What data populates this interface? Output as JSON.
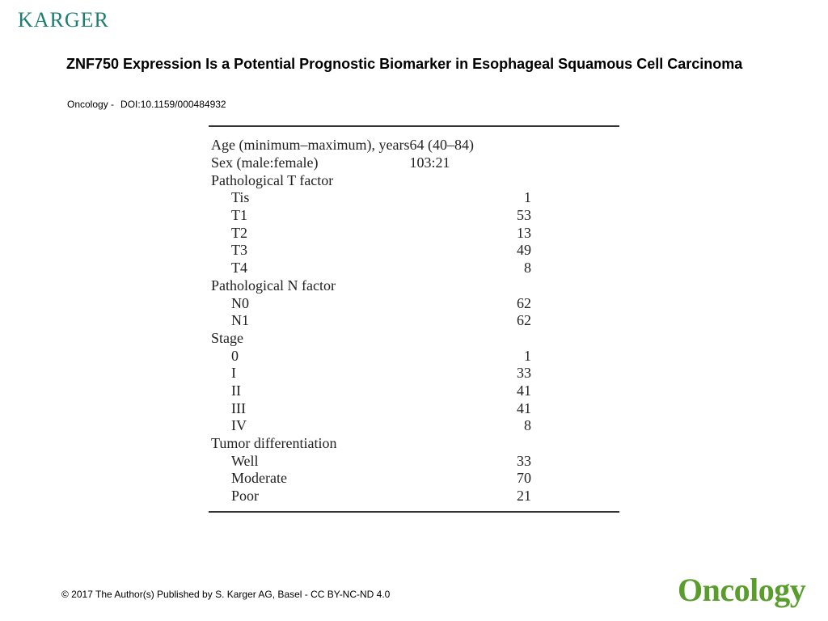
{
  "header": {
    "publisher_logo": "KARGER"
  },
  "title": "ZNF750 Expression Is a Potential Prognostic Biomarker in Esophageal Squamous Cell Carcinoma",
  "citation": {
    "journal": "Oncology -",
    "doi": "DOI:10.1159/000484932"
  },
  "table": {
    "rows": [
      {
        "label": "Age (minimum–maximum), years",
        "value": "64 (40–84)",
        "indent": false
      },
      {
        "label": "Sex (male:female)",
        "value": "103:21",
        "indent": false
      },
      {
        "label": "Pathological T factor",
        "value": "",
        "indent": false
      },
      {
        "label": "Tis",
        "value": "1",
        "indent": true
      },
      {
        "label": "T1",
        "value": "53",
        "indent": true
      },
      {
        "label": "T2",
        "value": "13",
        "indent": true
      },
      {
        "label": "T3",
        "value": "49",
        "indent": true
      },
      {
        "label": "T4",
        "value": "8",
        "indent": true
      },
      {
        "label": "Pathological N factor",
        "value": "",
        "indent": false
      },
      {
        "label": "N0",
        "value": "62",
        "indent": true
      },
      {
        "label": "N1",
        "value": "62",
        "indent": true
      },
      {
        "label": "Stage",
        "value": "",
        "indent": false
      },
      {
        "label": "0",
        "value": "1",
        "indent": true
      },
      {
        "label": "I",
        "value": "33",
        "indent": true
      },
      {
        "label": "II",
        "value": "41",
        "indent": true
      },
      {
        "label": "III",
        "value": "41",
        "indent": true
      },
      {
        "label": "IV",
        "value": "8",
        "indent": true
      },
      {
        "label": "Tumor differentiation",
        "value": "",
        "indent": false
      },
      {
        "label": "Well",
        "value": "33",
        "indent": true
      },
      {
        "label": "Moderate",
        "value": "70",
        "indent": true
      },
      {
        "label": "Poor",
        "value": "21",
        "indent": true
      }
    ]
  },
  "footer": {
    "copyright": "© 2017 The Author(s) Published by S. Karger AG, Basel - CC BY-NC-ND 4.0",
    "journal_logo": "Oncology"
  },
  "colors": {
    "publisher_logo": "#1a7f70",
    "journal_logo": "#5a9d2c"
  }
}
